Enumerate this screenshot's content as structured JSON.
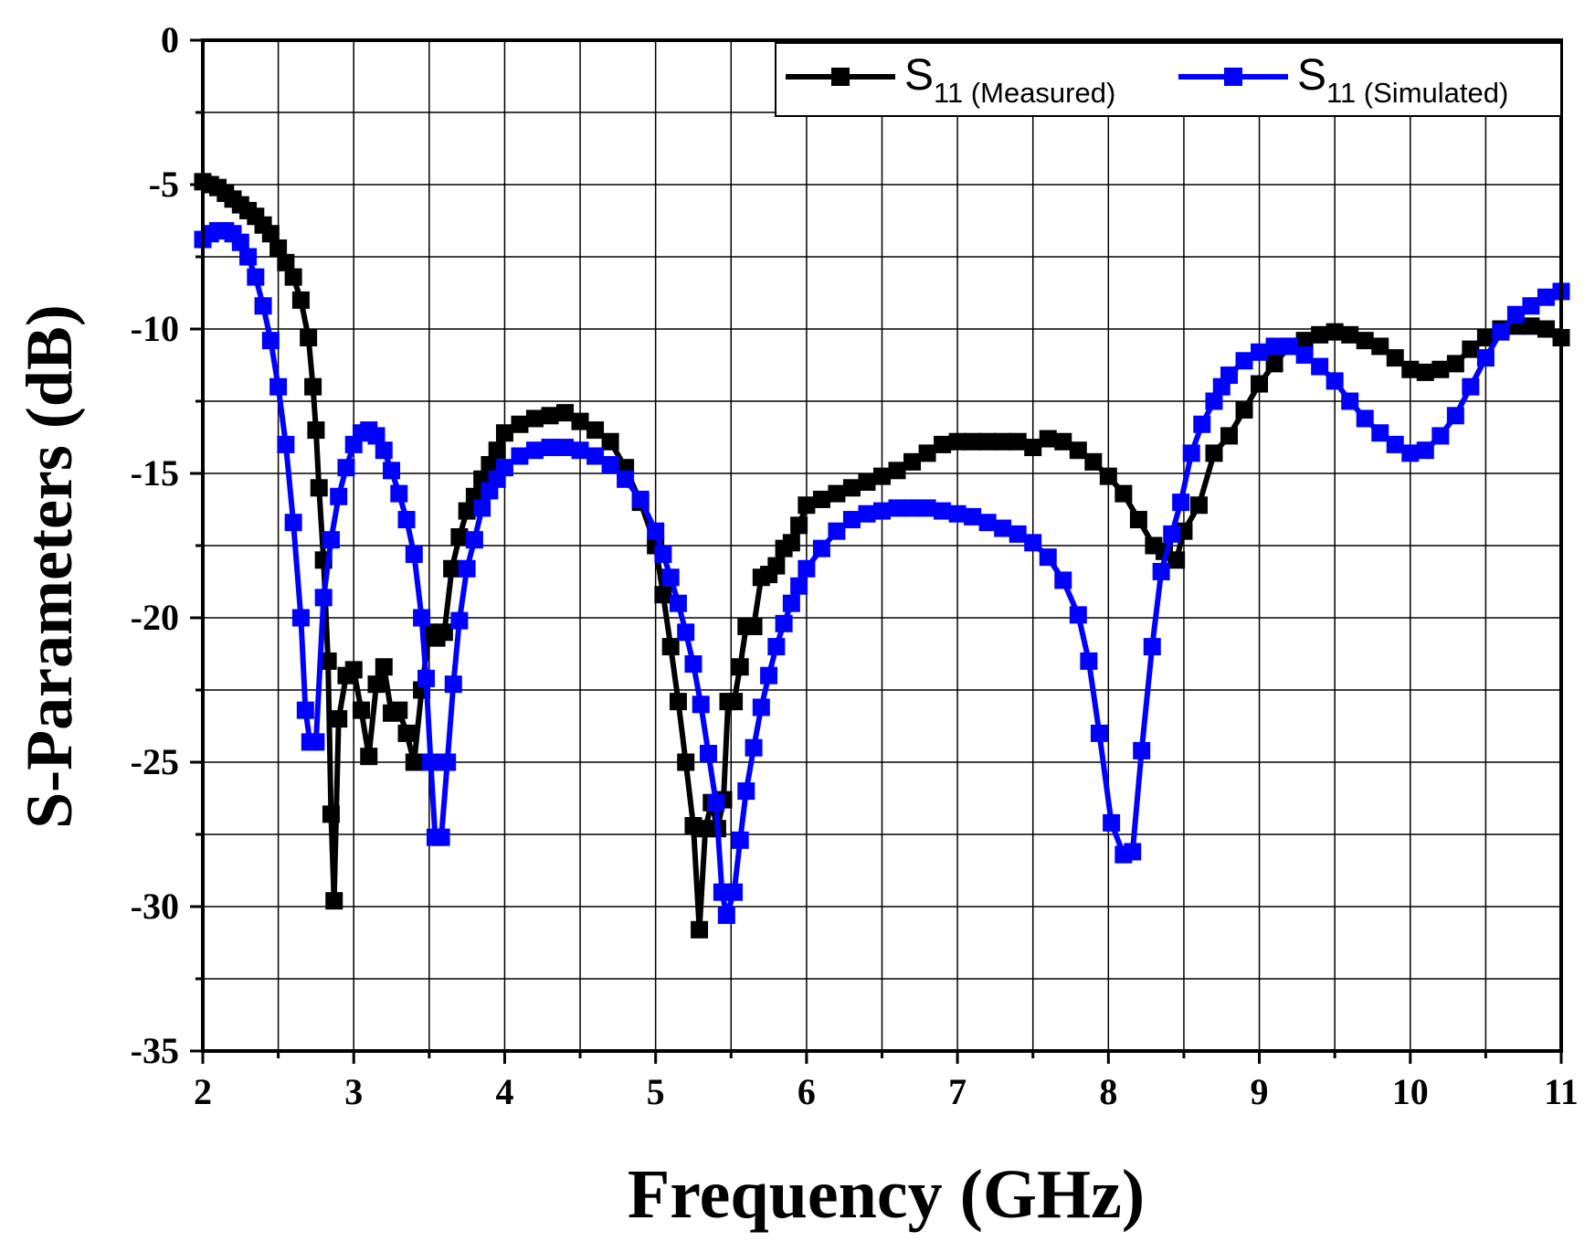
{
  "chart_data": {
    "type": "line",
    "xlabel": "Frequency (GHz)",
    "ylabel": "S-Parameters (dB)",
    "xlim": [
      2,
      11
    ],
    "ylim": [
      -35,
      0
    ],
    "x_ticks": [
      "2",
      "3",
      "4",
      "5",
      "6",
      "7",
      "8",
      "9",
      "10",
      "11"
    ],
    "y_ticks": [
      "0",
      "-5",
      "-10",
      "-15",
      "-20",
      "-25",
      "-30",
      "-35"
    ],
    "grid": true,
    "legend_placement": "top-right",
    "series": [
      {
        "name": "S",
        "subscript": "11",
        "qualifier": "(Measured)",
        "color": "#000000",
        "marker": "square",
        "points": [
          [
            2.0,
            -4.9
          ],
          [
            2.05,
            -5.0
          ],
          [
            2.1,
            -5.1
          ],
          [
            2.15,
            -5.3
          ],
          [
            2.2,
            -5.5
          ],
          [
            2.25,
            -5.7
          ],
          [
            2.3,
            -5.9
          ],
          [
            2.35,
            -6.1
          ],
          [
            2.4,
            -6.4
          ],
          [
            2.45,
            -6.7
          ],
          [
            2.5,
            -7.2
          ],
          [
            2.55,
            -7.7
          ],
          [
            2.6,
            -8.2
          ],
          [
            2.65,
            -9.0
          ],
          [
            2.7,
            -10.3
          ],
          [
            2.73,
            -12.0
          ],
          [
            2.75,
            -13.5
          ],
          [
            2.77,
            -15.5
          ],
          [
            2.8,
            -18.0
          ],
          [
            2.83,
            -21.5
          ],
          [
            2.85,
            -26.8
          ],
          [
            2.87,
            -29.8
          ],
          [
            2.9,
            -23.5
          ],
          [
            2.95,
            -22.0
          ],
          [
            3.0,
            -21.8
          ],
          [
            3.05,
            -23.2
          ],
          [
            3.1,
            -24.8
          ],
          [
            3.15,
            -22.3
          ],
          [
            3.2,
            -21.7
          ],
          [
            3.25,
            -23.3
          ],
          [
            3.3,
            -23.2
          ],
          [
            3.35,
            -24.0
          ],
          [
            3.4,
            -25.0
          ],
          [
            3.45,
            -22.5
          ],
          [
            3.5,
            -20.5
          ],
          [
            3.55,
            -20.7
          ],
          [
            3.6,
            -20.5
          ],
          [
            3.65,
            -18.3
          ],
          [
            3.7,
            -17.2
          ],
          [
            3.75,
            -16.3
          ],
          [
            3.8,
            -15.8
          ],
          [
            3.85,
            -15.2
          ],
          [
            3.9,
            -14.7
          ],
          [
            3.95,
            -14.2
          ],
          [
            4.0,
            -13.6
          ],
          [
            4.1,
            -13.3
          ],
          [
            4.2,
            -13.1
          ],
          [
            4.3,
            -13.0
          ],
          [
            4.4,
            -12.9
          ],
          [
            4.5,
            -13.2
          ],
          [
            4.6,
            -13.5
          ],
          [
            4.7,
            -13.9
          ],
          [
            4.8,
            -14.8
          ],
          [
            4.9,
            -16.0
          ],
          [
            5.0,
            -17.5
          ],
          [
            5.05,
            -19.2
          ],
          [
            5.1,
            -21.0
          ],
          [
            5.15,
            -22.9
          ],
          [
            5.2,
            -25.0
          ],
          [
            5.25,
            -27.2
          ],
          [
            5.29,
            -30.8
          ],
          [
            5.33,
            -27.3
          ],
          [
            5.37,
            -26.4
          ],
          [
            5.41,
            -27.3
          ],
          [
            5.45,
            -26.3
          ],
          [
            5.48,
            -22.9
          ],
          [
            5.52,
            -22.9
          ],
          [
            5.56,
            -21.7
          ],
          [
            5.6,
            -20.3
          ],
          [
            5.65,
            -20.3
          ],
          [
            5.7,
            -18.6
          ],
          [
            5.75,
            -18.5
          ],
          [
            5.8,
            -18.2
          ],
          [
            5.85,
            -17.6
          ],
          [
            5.9,
            -17.4
          ],
          [
            5.95,
            -16.8
          ],
          [
            6.0,
            -16.1
          ],
          [
            6.1,
            -15.9
          ],
          [
            6.2,
            -15.7
          ],
          [
            6.3,
            -15.5
          ],
          [
            6.4,
            -15.3
          ],
          [
            6.5,
            -15.1
          ],
          [
            6.6,
            -14.9
          ],
          [
            6.7,
            -14.6
          ],
          [
            6.8,
            -14.3
          ],
          [
            6.9,
            -14.0
          ],
          [
            7.0,
            -13.9
          ],
          [
            7.1,
            -13.9
          ],
          [
            7.2,
            -13.9
          ],
          [
            7.3,
            -13.9
          ],
          [
            7.4,
            -13.9
          ],
          [
            7.5,
            -14.1
          ],
          [
            7.6,
            -13.8
          ],
          [
            7.7,
            -13.9
          ],
          [
            7.8,
            -14.2
          ],
          [
            7.9,
            -14.6
          ],
          [
            8.0,
            -15.1
          ],
          [
            8.1,
            -15.7
          ],
          [
            8.2,
            -16.6
          ],
          [
            8.3,
            -17.5
          ],
          [
            8.37,
            -17.7
          ],
          [
            8.45,
            -18.0
          ],
          [
            8.5,
            -17.0
          ],
          [
            8.6,
            -16.1
          ],
          [
            8.7,
            -14.3
          ],
          [
            8.8,
            -13.7
          ],
          [
            8.9,
            -12.8
          ],
          [
            9.0,
            -11.9
          ],
          [
            9.1,
            -11.2
          ],
          [
            9.2,
            -10.6
          ],
          [
            9.3,
            -10.4
          ],
          [
            9.4,
            -10.2
          ],
          [
            9.5,
            -10.1
          ],
          [
            9.6,
            -10.2
          ],
          [
            9.7,
            -10.4
          ],
          [
            9.8,
            -10.6
          ],
          [
            9.9,
            -11.0
          ],
          [
            10.0,
            -11.4
          ],
          [
            10.1,
            -11.5
          ],
          [
            10.2,
            -11.4
          ],
          [
            10.3,
            -11.2
          ],
          [
            10.4,
            -10.7
          ],
          [
            10.5,
            -10.3
          ],
          [
            10.6,
            -10.0
          ],
          [
            10.7,
            -9.9
          ],
          [
            10.8,
            -9.9
          ],
          [
            10.9,
            -10.0
          ],
          [
            11.0,
            -10.3
          ]
        ]
      },
      {
        "name": "S",
        "subscript": "11",
        "qualifier": "(Simulated)",
        "color": "#0000ff",
        "marker": "square",
        "points": [
          [
            2.0,
            -6.9
          ],
          [
            2.05,
            -6.7
          ],
          [
            2.1,
            -6.6
          ],
          [
            2.15,
            -6.6
          ],
          [
            2.2,
            -6.7
          ],
          [
            2.25,
            -7.0
          ],
          [
            2.3,
            -7.5
          ],
          [
            2.35,
            -8.2
          ],
          [
            2.4,
            -9.2
          ],
          [
            2.45,
            -10.4
          ],
          [
            2.5,
            -12.0
          ],
          [
            2.55,
            -14.0
          ],
          [
            2.6,
            -16.7
          ],
          [
            2.65,
            -20.0
          ],
          [
            2.68,
            -23.2
          ],
          [
            2.71,
            -24.3
          ],
          [
            2.75,
            -24.3
          ],
          [
            2.8,
            -19.3
          ],
          [
            2.85,
            -17.3
          ],
          [
            2.9,
            -15.8
          ],
          [
            2.95,
            -14.8
          ],
          [
            3.0,
            -14.0
          ],
          [
            3.05,
            -13.6
          ],
          [
            3.1,
            -13.5
          ],
          [
            3.15,
            -13.7
          ],
          [
            3.2,
            -14.2
          ],
          [
            3.25,
            -14.9
          ],
          [
            3.3,
            -15.7
          ],
          [
            3.35,
            -16.6
          ],
          [
            3.4,
            -17.8
          ],
          [
            3.45,
            -20.0
          ],
          [
            3.48,
            -22.1
          ],
          [
            3.51,
            -25.0
          ],
          [
            3.54,
            -27.6
          ],
          [
            3.58,
            -27.6
          ],
          [
            3.62,
            -25.0
          ],
          [
            3.66,
            -22.3
          ],
          [
            3.7,
            -20.1
          ],
          [
            3.75,
            -18.3
          ],
          [
            3.8,
            -17.3
          ],
          [
            3.85,
            -16.2
          ],
          [
            3.9,
            -15.6
          ],
          [
            3.95,
            -15.2
          ],
          [
            4.0,
            -14.8
          ],
          [
            4.1,
            -14.4
          ],
          [
            4.2,
            -14.2
          ],
          [
            4.3,
            -14.1
          ],
          [
            4.4,
            -14.1
          ],
          [
            4.5,
            -14.2
          ],
          [
            4.6,
            -14.4
          ],
          [
            4.7,
            -14.7
          ],
          [
            4.8,
            -15.2
          ],
          [
            4.9,
            -15.9
          ],
          [
            5.0,
            -17.0
          ],
          [
            5.05,
            -17.8
          ],
          [
            5.1,
            -18.6
          ],
          [
            5.15,
            -19.5
          ],
          [
            5.2,
            -20.5
          ],
          [
            5.25,
            -21.6
          ],
          [
            5.3,
            -23.0
          ],
          [
            5.35,
            -24.7
          ],
          [
            5.4,
            -26.4
          ],
          [
            5.44,
            -29.5
          ],
          [
            5.47,
            -30.3
          ],
          [
            5.52,
            -29.5
          ],
          [
            5.56,
            -27.7
          ],
          [
            5.6,
            -26.0
          ],
          [
            5.65,
            -24.5
          ],
          [
            5.7,
            -23.1
          ],
          [
            5.75,
            -22.0
          ],
          [
            5.8,
            -21.0
          ],
          [
            5.85,
            -20.2
          ],
          [
            5.9,
            -19.5
          ],
          [
            5.95,
            -18.9
          ],
          [
            6.0,
            -18.3
          ],
          [
            6.1,
            -17.6
          ],
          [
            6.2,
            -17.0
          ],
          [
            6.3,
            -16.6
          ],
          [
            6.4,
            -16.4
          ],
          [
            6.5,
            -16.3
          ],
          [
            6.6,
            -16.2
          ],
          [
            6.7,
            -16.2
          ],
          [
            6.8,
            -16.2
          ],
          [
            6.9,
            -16.3
          ],
          [
            7.0,
            -16.4
          ],
          [
            7.1,
            -16.5
          ],
          [
            7.2,
            -16.7
          ],
          [
            7.3,
            -16.9
          ],
          [
            7.4,
            -17.1
          ],
          [
            7.5,
            -17.4
          ],
          [
            7.6,
            -17.9
          ],
          [
            7.7,
            -18.7
          ],
          [
            7.8,
            -19.9
          ],
          [
            7.87,
            -21.5
          ],
          [
            7.94,
            -24.0
          ],
          [
            8.02,
            -27.1
          ],
          [
            8.1,
            -28.2
          ],
          [
            8.16,
            -28.1
          ],
          [
            8.22,
            -24.6
          ],
          [
            8.29,
            -21.0
          ],
          [
            8.35,
            -18.4
          ],
          [
            8.42,
            -17.1
          ],
          [
            8.48,
            -16.0
          ],
          [
            8.55,
            -14.3
          ],
          [
            8.62,
            -13.3
          ],
          [
            8.7,
            -12.5
          ],
          [
            8.75,
            -12.0
          ],
          [
            8.8,
            -11.6
          ],
          [
            8.9,
            -11.1
          ],
          [
            9.0,
            -10.8
          ],
          [
            9.1,
            -10.6
          ],
          [
            9.2,
            -10.6
          ],
          [
            9.3,
            -10.9
          ],
          [
            9.4,
            -11.3
          ],
          [
            9.5,
            -11.8
          ],
          [
            9.6,
            -12.5
          ],
          [
            9.7,
            -13.1
          ],
          [
            9.8,
            -13.6
          ],
          [
            9.9,
            -14.0
          ],
          [
            10.0,
            -14.3
          ],
          [
            10.1,
            -14.2
          ],
          [
            10.2,
            -13.7
          ],
          [
            10.3,
            -13.0
          ],
          [
            10.4,
            -12.0
          ],
          [
            10.5,
            -11.0
          ],
          [
            10.6,
            -10.1
          ],
          [
            10.7,
            -9.5
          ],
          [
            10.8,
            -9.2
          ],
          [
            10.9,
            -8.9
          ],
          [
            11.0,
            -8.7
          ]
        ]
      }
    ]
  }
}
